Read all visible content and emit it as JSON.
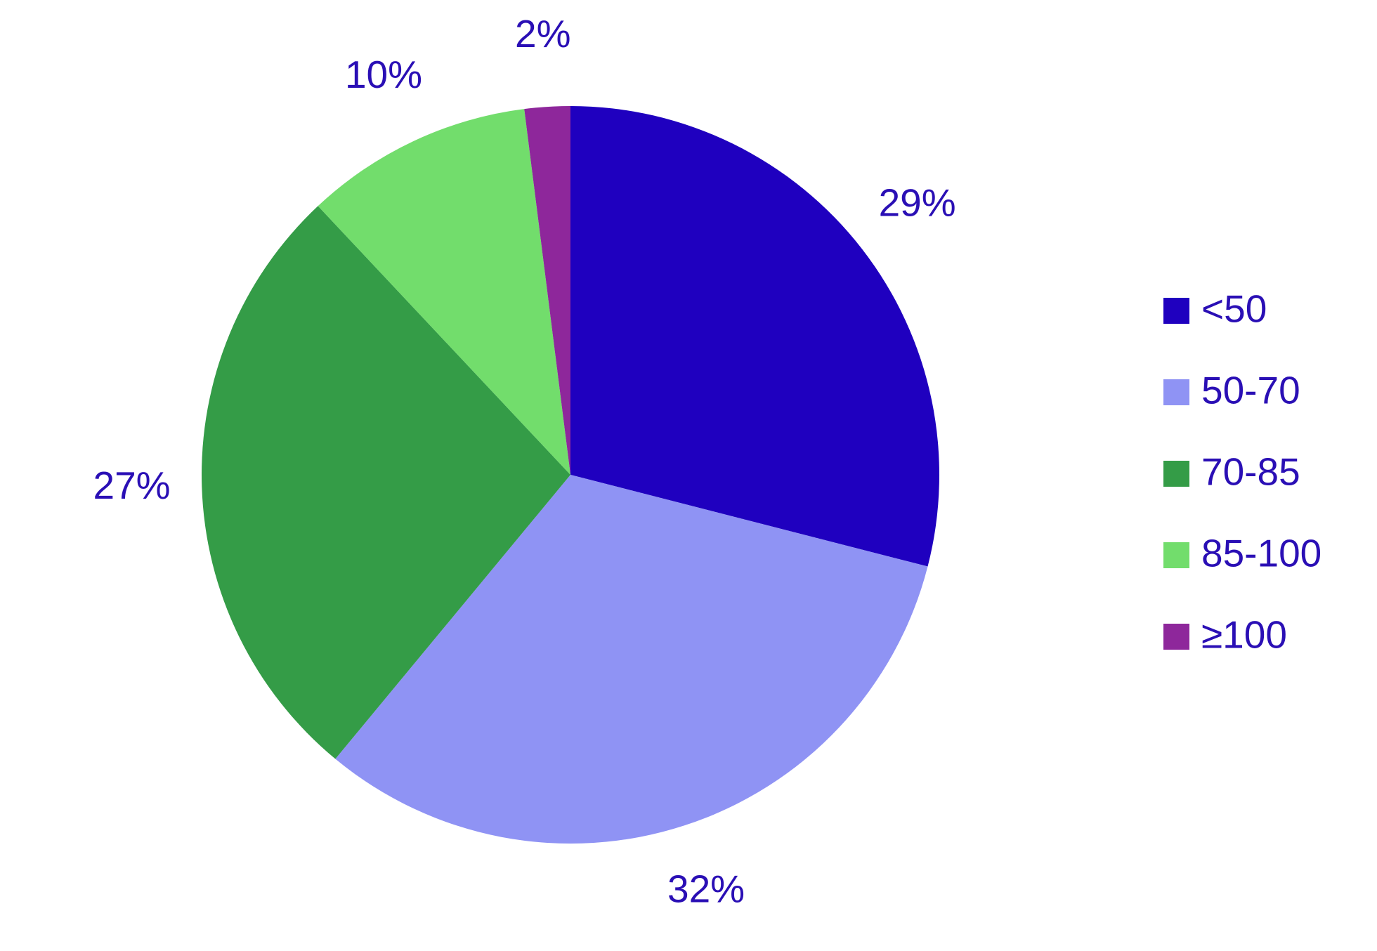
{
  "chart_data": {
    "type": "pie",
    "categories": [
      "<50",
      "50-70",
      "70-85",
      "85-100",
      "≥100"
    ],
    "values": [
      29,
      32,
      27,
      10,
      2
    ],
    "value_labels": [
      "29%",
      "32%",
      "27%",
      "10%",
      "2%"
    ],
    "colors": [
      "#1f00bf",
      "#8f93f4",
      "#349c47",
      "#72dd6c",
      "#8e279b"
    ],
    "legend": "right"
  }
}
